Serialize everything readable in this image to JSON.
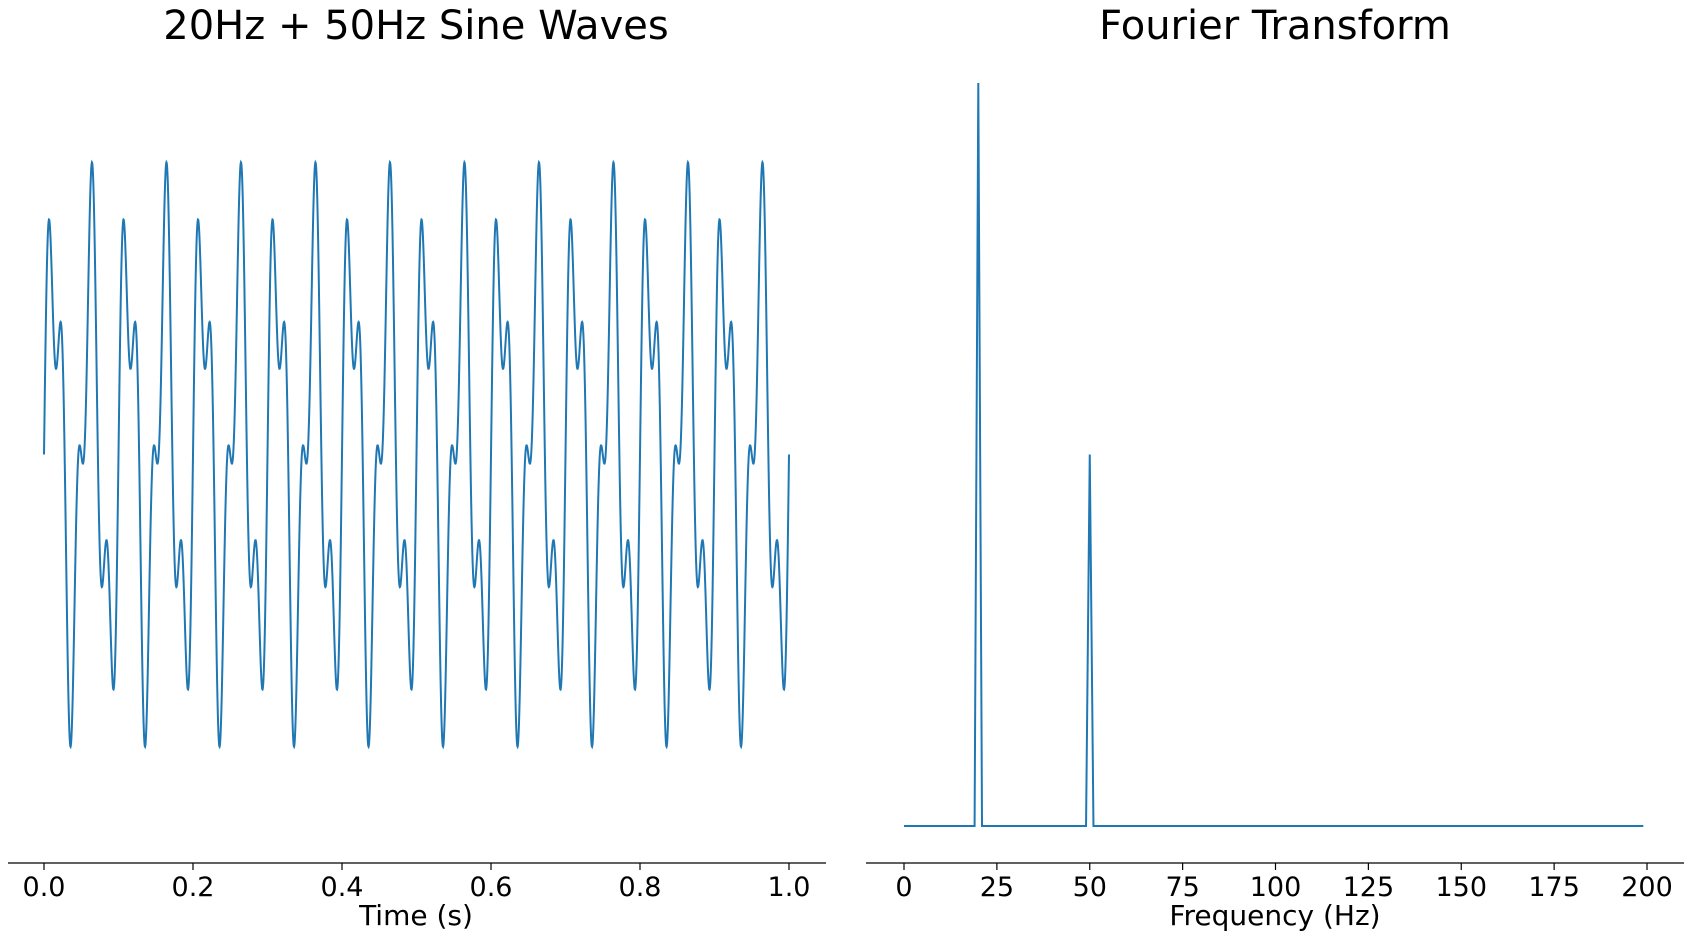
{
  "chart_data": [
    {
      "type": "line",
      "title": "20Hz + 50Hz Sine Waves",
      "xlabel": "Time (s)",
      "ylabel": "",
      "xlim": [
        0.0,
        1.0
      ],
      "ylim": [
        -1.86,
        1.86
      ],
      "x_ticks": [
        "0.0",
        "0.2",
        "0.4",
        "0.6",
        "0.8",
        "1.0"
      ],
      "x_tick_values": [
        0.0,
        0.2,
        0.4,
        0.6,
        0.8,
        1.0
      ],
      "show_y_axis": false,
      "grid": false,
      "series": [
        {
          "components": [
            {
              "frequency_hz": 20,
              "amplitude": 1.0
            },
            {
              "frequency_hz": 50,
              "amplitude": 0.5
            }
          ],
          "color": "#1f77b4"
        }
      ]
    },
    {
      "type": "line",
      "title": "Fourier Transform",
      "xlabel": "Frequency (Hz)",
      "ylabel": "",
      "xlim": [
        0,
        199
      ],
      "ylim": [
        0,
        1.0
      ],
      "x_ticks": [
        "0",
        "25",
        "50",
        "75",
        "100",
        "125",
        "150",
        "175",
        "200"
      ],
      "x_tick_values": [
        0,
        25,
        50,
        75,
        100,
        125,
        150,
        175,
        200
      ],
      "show_y_axis": false,
      "grid": false,
      "series": [
        {
          "x": [
            0,
            19,
            20,
            21,
            49,
            50,
            51,
            199
          ],
          "y": [
            0,
            0,
            1.0,
            0,
            0,
            0.5,
            0,
            0
          ],
          "color": "#1f77b4"
        }
      ]
    }
  ]
}
